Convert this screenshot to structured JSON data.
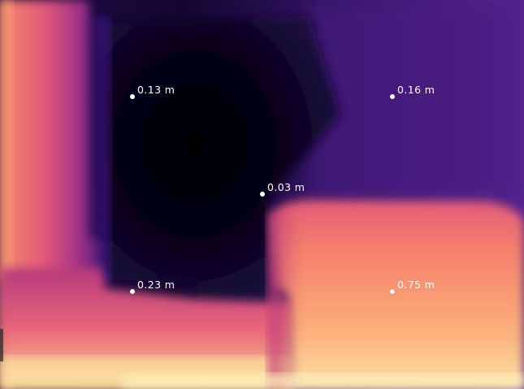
{
  "image": {
    "kind": "depth-map",
    "colormap": "magma"
  },
  "measurements": [
    {
      "label": "0.13 m"
    },
    {
      "label": "0.16 m"
    },
    {
      "label": "0.03 m"
    },
    {
      "label": "0.23 m"
    },
    {
      "label": "0.75 m"
    }
  ]
}
